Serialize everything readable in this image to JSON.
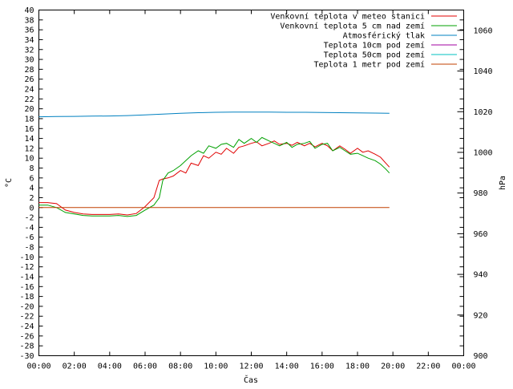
{
  "chart_data": {
    "type": "line",
    "xlabel": "Čas",
    "ylabel": "°C",
    "y2label": "hPa",
    "x_ticks": [
      "00:00",
      "02:00",
      "04:00",
      "06:00",
      "08:00",
      "10:00",
      "12:00",
      "14:00",
      "16:00",
      "18:00",
      "20:00",
      "22:00",
      "00:00"
    ],
    "xlim_hours": [
      0,
      24
    ],
    "ylim": [
      -30,
      40
    ],
    "y_tick_step": 2,
    "y2lim": [
      900,
      1070
    ],
    "y2_ticks": [
      900,
      920,
      940,
      960,
      980,
      1000,
      1020,
      1040,
      1060
    ],
    "grid": false,
    "legend_position": "top-right",
    "series": [
      {
        "name": "Venkovní teplota v meteo stanici",
        "color": "#e00000",
        "axis": "left",
        "x": [
          0,
          0.5,
          1,
          1.5,
          2,
          2.5,
          3,
          3.5,
          4,
          4.5,
          5,
          5.5,
          6,
          6.5,
          6.8,
          7,
          7.3,
          7.6,
          8,
          8.3,
          8.6,
          9,
          9.3,
          9.6,
          10,
          10.3,
          10.6,
          11,
          11.3,
          11.6,
          12,
          12.3,
          12.6,
          13,
          13.3,
          13.6,
          14,
          14.3,
          14.6,
          15,
          15.3,
          15.6,
          16,
          16.3,
          16.6,
          17,
          17.3,
          17.6,
          18,
          18.3,
          18.6,
          19,
          19.3,
          19.6,
          19.8
        ],
        "y": [
          1,
          1,
          0.8,
          -0.5,
          -1,
          -1.3,
          -1.4,
          -1.4,
          -1.4,
          -1.3,
          -1.5,
          -1.2,
          0.2,
          2,
          5.5,
          5.8,
          6,
          6.4,
          7.5,
          7,
          9,
          8.5,
          10.5,
          10,
          11.2,
          10.8,
          12,
          11,
          12.2,
          12.5,
          13,
          13.3,
          12.5,
          13,
          13.5,
          12.8,
          13,
          12.6,
          13.2,
          12.5,
          13,
          12.3,
          13,
          12.5,
          11.5,
          12.5,
          11.8,
          11,
          12,
          11.2,
          11.5,
          10.8,
          10.2,
          9,
          8.2
        ]
      },
      {
        "name": "Venkovní teplota 5 cm nad zemí",
        "color": "#00a000",
        "axis": "left",
        "x": [
          0,
          0.5,
          1,
          1.5,
          2,
          2.5,
          3,
          3.5,
          4,
          4.5,
          5,
          5.5,
          6,
          6.5,
          6.8,
          7,
          7.3,
          7.6,
          8,
          8.3,
          8.6,
          9,
          9.3,
          9.6,
          10,
          10.3,
          10.6,
          11,
          11.3,
          11.6,
          12,
          12.3,
          12.6,
          13,
          13.3,
          13.6,
          14,
          14.3,
          14.6,
          15,
          15.3,
          15.6,
          16,
          16.3,
          16.6,
          17,
          17.3,
          17.6,
          18,
          18.3,
          18.6,
          19,
          19.3,
          19.6,
          19.8
        ],
        "y": [
          0.5,
          0.5,
          0,
          -1,
          -1.3,
          -1.6,
          -1.7,
          -1.7,
          -1.7,
          -1.6,
          -1.8,
          -1.6,
          -0.5,
          0.5,
          2,
          5.5,
          7,
          7.5,
          8.5,
          9.5,
          10.5,
          11.5,
          11,
          12.5,
          12,
          12.8,
          13,
          12.2,
          13.8,
          13,
          14,
          13.2,
          14.2,
          13.5,
          13,
          12.5,
          13.2,
          12.2,
          12.8,
          13,
          13.4,
          12,
          12.8,
          13,
          11.5,
          12.2,
          11.5,
          10.8,
          11,
          10.5,
          10,
          9.5,
          8.8,
          7.8,
          7
        ]
      },
      {
        "name": "Atmosférický tlak",
        "color": "#0080c0",
        "axis": "right",
        "x": [
          0,
          1,
          2,
          3,
          4,
          5,
          6,
          7,
          8,
          9,
          10,
          11,
          12,
          13,
          14,
          15,
          16,
          17,
          18,
          19,
          19.8
        ],
        "y": [
          1017.5,
          1017.6,
          1017.7,
          1017.8,
          1017.9,
          1018.1,
          1018.4,
          1018.8,
          1019.2,
          1019.5,
          1019.7,
          1019.8,
          1019.8,
          1019.8,
          1019.7,
          1019.7,
          1019.6,
          1019.5,
          1019.4,
          1019.3,
          1019.2
        ]
      },
      {
        "name": "Teplota 10cm pod zemí",
        "color": "#a000a0",
        "axis": "left",
        "x": [],
        "y": []
      },
      {
        "name": "Teplota 50cm pod zemí",
        "color": "#00c0c0",
        "axis": "left",
        "x": [],
        "y": []
      },
      {
        "name": "Teplota 1 metr pod zemí",
        "color": "#c04000",
        "axis": "left",
        "x": [
          0,
          19.8
        ],
        "y": [
          0,
          0
        ]
      }
    ]
  }
}
